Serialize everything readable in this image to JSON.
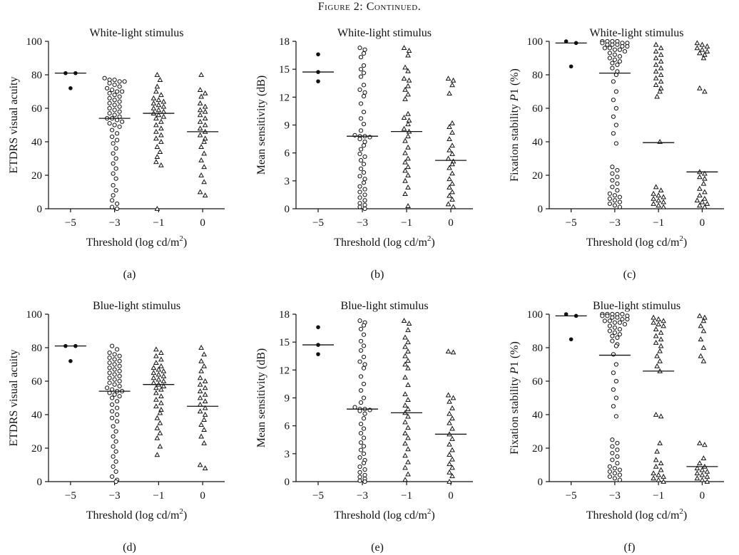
{
  "caption": "Figure 2: Continued.",
  "chart_data": [
    {
      "panel": "(a)",
      "type": "scatter",
      "title": "White-light stimulus",
      "xlabel": "Threshold (log cd/m2)",
      "ylabel": "ETDRS visual acuity",
      "categories": [
        "-5",
        "-3",
        "-1",
        "0"
      ],
      "ylim": [
        0,
        100
      ],
      "yticks": [
        0,
        20,
        40,
        60,
        80,
        100
      ],
      "medians": [
        81,
        54,
        57,
        46
      ],
      "groups": [
        {
          "marker": "dot",
          "values": [
            81,
            81,
            72
          ]
        },
        {
          "marker": "circle",
          "values": [
            78,
            77,
            77,
            76,
            76,
            75,
            74,
            73,
            72,
            71,
            70,
            70,
            69,
            68,
            67,
            66,
            65,
            64,
            63,
            62,
            61,
            60,
            59,
            58,
            57,
            56,
            55,
            54,
            54,
            53,
            52,
            51,
            50,
            49,
            47,
            45,
            43,
            41,
            39,
            36,
            33,
            30,
            27,
            24,
            21,
            18,
            14,
            11,
            8,
            5,
            3,
            1,
            0
          ]
        },
        {
          "marker": "triangle",
          "values": [
            80,
            77,
            73,
            70,
            68,
            66,
            65,
            64,
            63,
            62,
            61,
            60,
            59,
            58,
            57,
            56,
            55,
            54,
            52,
            50,
            48,
            46,
            44,
            42,
            40,
            37,
            34,
            31,
            28,
            26,
            0
          ]
        },
        {
          "marker": "triangle",
          "values": [
            80,
            71,
            69,
            67,
            63,
            61,
            59,
            58,
            56,
            54,
            52,
            50,
            48,
            46,
            44,
            42,
            40,
            37,
            33,
            29,
            25,
            20,
            16,
            10,
            8
          ]
        }
      ]
    },
    {
      "panel": "(b)",
      "type": "scatter",
      "title": "White-light stimulus",
      "xlabel": "Threshold (log cd/m2)",
      "ylabel": "Mean sensitivity (dB)",
      "categories": [
        "-5",
        "-3",
        "-1",
        "0"
      ],
      "ylim": [
        0,
        18
      ],
      "yticks": [
        0,
        3,
        6,
        9,
        12,
        15,
        18
      ],
      "medians": [
        14.7,
        7.8,
        8.3,
        5.2
      ],
      "groups": [
        {
          "marker": "dot",
          "values": [
            16.6,
            14.7,
            13.7
          ]
        },
        {
          "marker": "circle",
          "values": [
            17.3,
            17.1,
            16.7,
            16.3,
            15.4,
            15.0,
            14.6,
            14.2,
            13.3,
            12.8,
            12.5,
            12.1,
            11.3,
            10.4,
            9.7,
            9.1,
            8.4,
            7.9,
            7.8,
            7.8,
            7.7,
            7.5,
            7.2,
            6.8,
            6.4,
            5.9,
            5.6,
            5.2,
            4.8,
            4.3,
            3.9,
            3.5,
            3.2,
            2.8,
            2.4,
            2.1,
            1.8,
            1.5,
            1.2,
            0.9,
            0.6,
            0.4,
            0.2,
            0.0
          ]
        },
        {
          "marker": "triangle",
          "values": [
            17.3,
            17.0,
            16.5,
            15.2,
            14.8,
            14.0,
            13.8,
            13.2,
            12.8,
            12.3,
            11.8,
            10.2,
            9.8,
            9.5,
            9.1,
            8.6,
            8.3,
            7.8,
            7.3,
            6.6,
            6.0,
            5.4,
            5.0,
            4.5,
            4.1,
            3.6,
            3.0,
            2.3,
            1.6,
            0.3
          ]
        },
        {
          "marker": "triangle",
          "values": [
            14.0,
            13.8,
            13.3,
            12.4,
            9.2,
            8.8,
            8.2,
            7.5,
            6.8,
            6.3,
            5.9,
            5.4,
            5.1,
            4.8,
            4.4,
            3.8,
            3.2,
            2.7,
            2.3,
            1.8,
            1.4,
            1.0,
            0.5,
            0.2
          ]
        }
      ]
    },
    {
      "panel": "(c)",
      "type": "scatter",
      "title": "White-light stimulus",
      "xlabel": "Threshold (log cd/m2)",
      "ylabel": "Fixation stability P1 (%)",
      "categories": [
        "-5",
        "-3",
        "-1",
        "0"
      ],
      "ylim": [
        0,
        100
      ],
      "yticks": [
        0,
        20,
        40,
        60,
        80,
        100
      ],
      "medians": [
        99,
        81,
        39.5,
        22
      ],
      "groups": [
        {
          "marker": "dot",
          "values": [
            100,
            99,
            85
          ]
        },
        {
          "marker": "circle",
          "values": [
            100,
            100,
            100,
            100,
            99,
            99,
            99,
            98,
            98,
            98,
            97,
            97,
            96,
            96,
            95,
            95,
            94,
            93,
            92,
            91,
            90,
            89,
            88,
            87,
            86,
            84,
            82,
            80,
            76,
            70,
            65,
            60,
            55,
            50,
            45,
            39,
            25,
            23,
            21,
            19,
            17,
            15,
            13,
            11,
            9,
            8,
            7,
            6,
            5,
            4,
            3,
            2,
            1
          ]
        },
        {
          "marker": "triangle",
          "values": [
            98,
            96,
            94,
            92,
            90,
            88,
            86,
            84,
            82,
            80,
            78,
            76,
            74,
            72,
            70,
            67,
            40,
            13,
            11,
            9,
            8,
            7,
            6,
            5,
            4,
            3,
            2,
            1
          ]
        },
        {
          "marker": "triangle",
          "values": [
            99,
            98,
            97,
            96,
            95,
            94,
            93,
            92,
            90,
            72,
            70,
            22,
            21,
            19,
            18,
            15,
            12,
            10,
            8,
            6,
            5,
            4,
            3,
            2,
            1
          ]
        }
      ]
    },
    {
      "panel": "(d)",
      "type": "scatter",
      "title": "Blue-light stimulus",
      "xlabel": "Threshold (log cd/m2)",
      "ylabel": "ETDRS visual acuity",
      "categories": [
        "-5",
        "-3",
        "-1",
        "0"
      ],
      "ylim": [
        0,
        100
      ],
      "yticks": [
        0,
        20,
        40,
        60,
        80,
        100
      ],
      "medians": [
        81,
        54,
        58,
        45
      ],
      "groups": [
        {
          "marker": "dot",
          "values": [
            81,
            81,
            72
          ]
        },
        {
          "marker": "circle",
          "values": [
            81,
            79,
            77,
            76,
            75,
            74,
            73,
            72,
            71,
            70,
            69,
            68,
            67,
            66,
            65,
            64,
            63,
            62,
            61,
            60,
            59,
            58,
            57,
            56,
            55,
            54,
            54,
            53,
            52,
            51,
            50,
            48,
            46,
            44,
            42,
            40,
            38,
            36,
            33,
            30,
            27,
            24,
            21,
            18,
            15,
            12,
            9,
            6,
            3,
            1,
            0
          ]
        },
        {
          "marker": "triangle",
          "values": [
            79,
            77,
            75,
            73,
            71,
            69,
            68,
            67,
            66,
            65,
            64,
            63,
            62,
            61,
            60,
            59,
            58,
            57,
            56,
            55,
            53,
            51,
            49,
            47,
            45,
            43,
            41,
            38,
            35,
            32,
            29,
            26,
            21,
            16
          ]
        },
        {
          "marker": "triangle",
          "values": [
            80,
            76,
            72,
            69,
            66,
            62,
            60,
            58,
            56,
            54,
            52,
            50,
            48,
            46,
            44,
            42,
            40,
            37,
            34,
            31,
            27,
            23,
            10,
            8
          ]
        }
      ]
    },
    {
      "panel": "(e)",
      "type": "scatter",
      "title": "Blue-light stimulus",
      "xlabel": "Threshold (log cd/m2)",
      "ylabel": "Mean sensitivity (dB)",
      "categories": [
        "-5",
        "-3",
        "-1",
        "0"
      ],
      "ylim": [
        0,
        18
      ],
      "yticks": [
        0,
        3,
        6,
        9,
        12,
        15,
        18
      ],
      "medians": [
        14.7,
        7.8,
        7.4,
        5.1
      ],
      "groups": [
        {
          "marker": "dot",
          "values": [
            16.6,
            14.7,
            13.7
          ]
        },
        {
          "marker": "circle",
          "values": [
            17.3,
            17.1,
            16.8,
            16.4,
            15.8,
            15.1,
            14.6,
            14.1,
            13.4,
            12.9,
            12.6,
            12.2,
            11.3,
            10.5,
            9.8,
            9.0,
            8.5,
            8.0,
            7.8,
            7.8,
            7.7,
            7.6,
            7.3,
            6.8,
            6.2,
            5.7,
            5.2,
            4.7,
            4.2,
            3.8,
            3.4,
            3.0,
            2.6,
            2.3,
            2.0,
            1.6,
            1.3,
            1.0,
            0.7,
            0.5,
            0.3,
            0.1,
            0.0
          ]
        },
        {
          "marker": "triangle",
          "values": [
            17.3,
            17.0,
            16.3,
            15.5,
            15.0,
            14.5,
            14.0,
            13.5,
            13.0,
            12.6,
            12.2,
            11.2,
            10.4,
            9.4,
            8.8,
            8.2,
            7.8,
            7.4,
            7.0,
            6.4,
            5.8,
            5.2,
            4.7,
            4.1,
            3.5,
            2.8,
            2.1,
            1.5,
            0.8,
            0.2
          ]
        },
        {
          "marker": "triangle",
          "values": [
            14.0,
            13.9,
            9.3,
            9.0,
            8.6,
            7.9,
            7.3,
            6.8,
            6.3,
            5.7,
            5.1,
            4.6,
            4.0,
            3.4,
            2.9,
            2.4,
            1.9,
            1.5,
            1.0,
            0.6,
            0.0
          ]
        }
      ]
    },
    {
      "panel": "(f)",
      "type": "scatter",
      "title": "Blue-light stimulus",
      "xlabel": "Threshold (log cd/m2)",
      "ylabel": "Fixation stability P1 (%)",
      "categories": [
        "-5",
        "-3",
        "-1",
        "0"
      ],
      "ylim": [
        0,
        100
      ],
      "yticks": [
        0,
        20,
        40,
        60,
        80,
        100
      ],
      "medians": [
        99,
        75.5,
        66,
        9
      ],
      "groups": [
        {
          "marker": "dot",
          "values": [
            100,
            99,
            85
          ]
        },
        {
          "marker": "circle",
          "values": [
            100,
            100,
            100,
            100,
            100,
            99,
            99,
            99,
            98,
            98,
            97,
            97,
            96,
            96,
            95,
            95,
            94,
            93,
            92,
            91,
            90,
            89,
            88,
            87,
            86,
            84,
            82,
            81,
            76,
            70,
            65,
            60,
            55,
            50,
            45,
            39,
            25,
            23,
            21,
            19,
            17,
            15,
            13,
            11,
            9,
            8,
            7,
            6,
            5,
            4,
            3,
            2,
            1
          ]
        },
        {
          "marker": "triangle",
          "values": [
            98,
            97,
            96,
            95,
            94,
            93,
            91,
            89,
            87,
            85,
            83,
            81,
            78,
            75,
            72,
            69,
            66,
            40,
            39,
            23,
            18,
            13,
            11,
            9,
            7,
            5,
            4,
            3,
            2,
            1,
            0
          ]
        },
        {
          "marker": "triangle",
          "values": [
            99,
            98,
            96,
            93,
            90,
            85,
            80,
            75,
            72,
            23,
            22,
            14,
            11,
            9,
            8,
            7,
            6,
            5,
            4,
            3,
            2,
            1,
            0
          ]
        }
      ]
    }
  ]
}
